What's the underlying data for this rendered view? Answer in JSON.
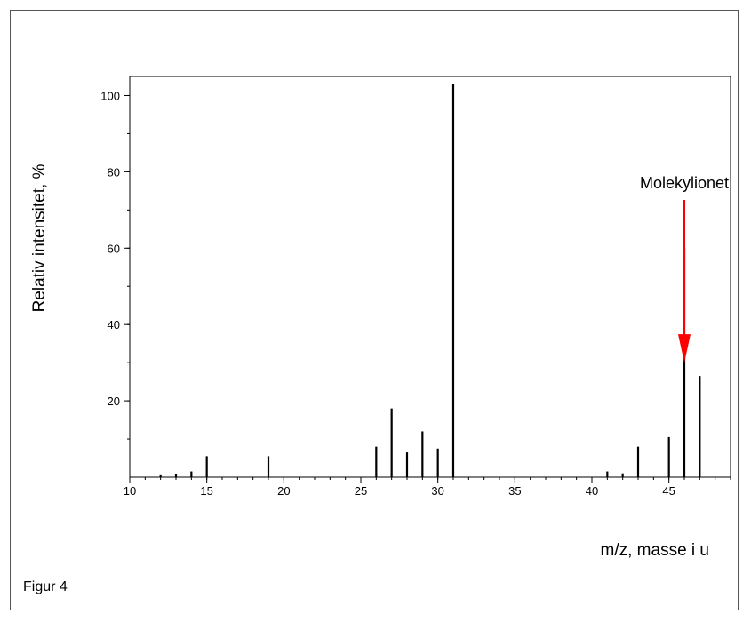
{
  "caption": "Figur 4",
  "chart_data": {
    "type": "bar",
    "xlabel": "m/z, masse i u",
    "ylabel": "Relativ intensitet, %",
    "xlim": [
      10,
      49
    ],
    "ylim": [
      0,
      105
    ],
    "x_tick_labels": [
      "10",
      "15",
      "20",
      "25",
      "30",
      "35",
      "40",
      "45"
    ],
    "x_tick_values": [
      10,
      15,
      20,
      25,
      30,
      35,
      40,
      45
    ],
    "y_tick_labels": [
      "20",
      "40",
      "60",
      "80",
      "100"
    ],
    "y_tick_values": [
      20,
      40,
      60,
      80,
      100
    ],
    "grid": false,
    "colors": {
      "bars": "#000000",
      "annotation_arrow": "#ff0000"
    },
    "series": [
      {
        "x": [
          12,
          13,
          14,
          15,
          19,
          26,
          27,
          28,
          29,
          30,
          31,
          41,
          42,
          43,
          45,
          46,
          47
        ],
        "values": [
          0.5,
          0.8,
          1.5,
          5.5,
          5.5,
          8,
          18,
          6.5,
          12,
          7.5,
          103,
          1.5,
          1,
          8,
          10.5,
          60,
          26.5
        ]
      }
    ],
    "annotations": [
      {
        "text": "Molekylionet",
        "x": 46,
        "y": 26.5
      }
    ]
  }
}
